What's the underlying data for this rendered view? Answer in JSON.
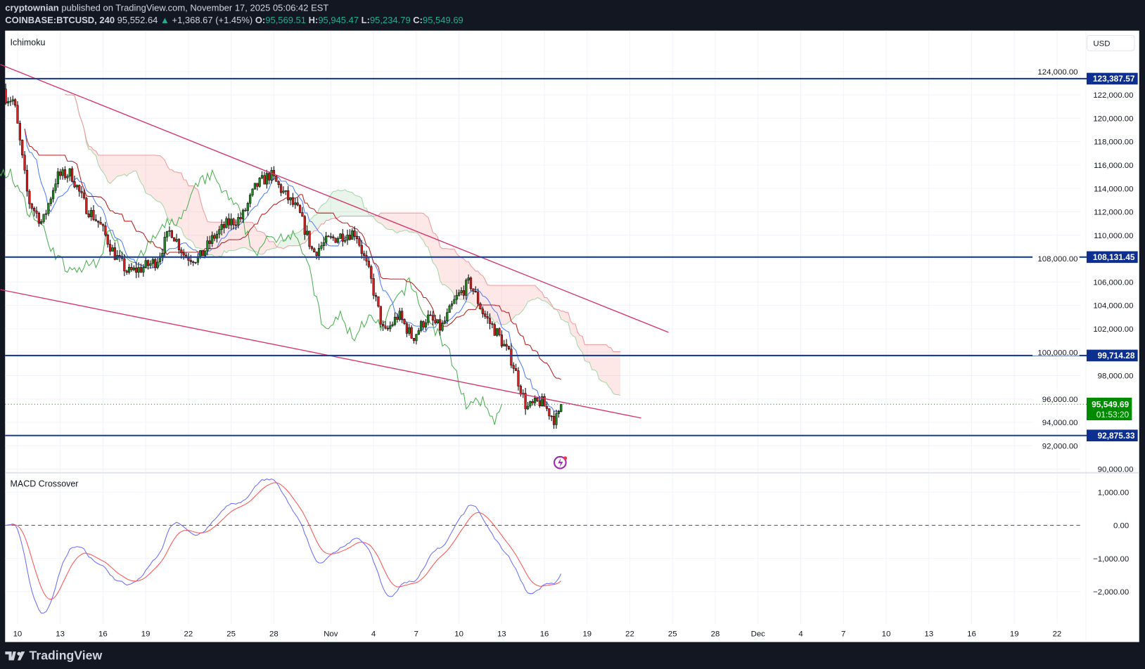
{
  "header": {
    "author": "cryptownian",
    "published": "published on TradingView.com, November 17, 2025 05:06:42 EST",
    "symbol": "COINBASE:BTCUSD, 240",
    "last": "95,552.64",
    "change": "+1,368.67 (+1.45%)",
    "o_label": "O:",
    "open": "95,569.51",
    "h_label": "H:",
    "high": "95,945.47",
    "l_label": "L:",
    "low": "95,234.79",
    "c_label": "C:",
    "close": "95,549.69"
  },
  "currency_button": "USD",
  "footer": {
    "brand": "TradingView"
  },
  "colors": {
    "up": "#1e8c1e",
    "down": "#e01b1b",
    "level": "#1c3f94",
    "trendline": "#d6336c",
    "tenkan": "#4d7cff",
    "kijun": "#b71c1c",
    "lagging": "#4caf50",
    "span_a": "#a5d6a7",
    "span_b": "#ef9a9a",
    "macd": "#6b6bff",
    "signal": "#ff5252",
    "last_price": "#008a00"
  },
  "chart_data": [
    {
      "type": "candlestick",
      "title": "Ichimoku",
      "timeframe": "4h",
      "indicators": [
        "Ichimoku Cloud (9, 26, 52, 26)"
      ],
      "ylim": [
        90000,
        124000
      ],
      "grid": true,
      "y_ticks": [
        "124,000.00",
        "122,000.00",
        "120,000.00",
        "118,000.00",
        "116,000.00",
        "114,000.00",
        "112,000.00",
        "110,000.00",
        "108,000.00",
        "106,000.00",
        "104,000.00",
        "102,000.00",
        "100,000.00",
        "98,000.00",
        "96,000.00",
        "94,000.00",
        "92,000.00",
        "90,000.00"
      ],
      "x_ticks": [
        "10",
        "13",
        "16",
        "19",
        "22",
        "25",
        "28",
        "Nov",
        "4",
        "7",
        "10",
        "13",
        "16",
        "19",
        "22",
        "25",
        "28",
        "Dec",
        "4",
        "7",
        "10",
        "13",
        "16",
        "19",
        "22"
      ],
      "daily_closes": [
        {
          "date": "2025-10-09",
          "close": 121500
        },
        {
          "date": "2025-10-10",
          "close": 113000
        },
        {
          "date": "2025-10-11",
          "close": 111000
        },
        {
          "date": "2025-10-12",
          "close": 115000
        },
        {
          "date": "2025-10-13",
          "close": 115300
        },
        {
          "date": "2025-10-14",
          "close": 112500
        },
        {
          "date": "2025-10-15",
          "close": 111000
        },
        {
          "date": "2025-10-16",
          "close": 108500
        },
        {
          "date": "2025-10-17",
          "close": 106800
        },
        {
          "date": "2025-10-18",
          "close": 107200
        },
        {
          "date": "2025-10-19",
          "close": 107800
        },
        {
          "date": "2025-10-20",
          "close": 110500
        },
        {
          "date": "2025-10-21",
          "close": 108200
        },
        {
          "date": "2025-10-22",
          "close": 108000
        },
        {
          "date": "2025-10-23",
          "close": 109800
        },
        {
          "date": "2025-10-24",
          "close": 111000
        },
        {
          "date": "2025-10-25",
          "close": 111500
        },
        {
          "date": "2025-10-26",
          "close": 114200
        },
        {
          "date": "2025-10-27",
          "close": 115200
        },
        {
          "date": "2025-10-28",
          "close": 113500
        },
        {
          "date": "2025-10-29",
          "close": 112000
        },
        {
          "date": "2025-10-30",
          "close": 108500
        },
        {
          "date": "2025-10-31",
          "close": 109500
        },
        {
          "date": "2025-11-01",
          "close": 110000
        },
        {
          "date": "2025-11-02",
          "close": 110300
        },
        {
          "date": "2025-11-03",
          "close": 106500
        },
        {
          "date": "2025-11-04",
          "close": 101500
        },
        {
          "date": "2025-11-05",
          "close": 103200
        },
        {
          "date": "2025-11-06",
          "close": 101200
        },
        {
          "date": "2025-11-07",
          "close": 103000
        },
        {
          "date": "2025-11-08",
          "close": 102000
        },
        {
          "date": "2025-11-09",
          "close": 104500
        },
        {
          "date": "2025-11-10",
          "close": 106000
        },
        {
          "date": "2025-11-11",
          "close": 103200
        },
        {
          "date": "2025-11-12",
          "close": 101500
        },
        {
          "date": "2025-11-13",
          "close": 99200
        },
        {
          "date": "2025-11-14",
          "close": 95200
        },
        {
          "date": "2025-11-15",
          "close": 95800
        },
        {
          "date": "2025-11-16",
          "close": 94200
        },
        {
          "date": "2025-11-17",
          "close": 95550
        }
      ],
      "horizontal_levels": [
        {
          "price": 123387.57,
          "label": "123,387.57"
        },
        {
          "price": 108131.45,
          "label": "108,131.45"
        },
        {
          "price": 99714.28,
          "label": "99,714.28"
        },
        {
          "price": 92875.33,
          "label": "92,875.33"
        }
      ],
      "last_price": {
        "price": 95549.69,
        "label": "95,549.69",
        "countdown": "01:53:20"
      },
      "trendlines": [
        {
          "from": {
            "date": "2025-10-08T19:00",
            "price": 124600
          },
          "to": {
            "date": "2025-11-24T17:00",
            "price": 101700
          }
        },
        {
          "from": {
            "date": "2025-10-08T19:00",
            "price": 105350
          },
          "to": {
            "date": "2025-11-22T19:00",
            "price": 94370
          }
        }
      ]
    },
    {
      "type": "line",
      "title": "MACD Crossover",
      "series": [
        {
          "role": "macd"
        },
        {
          "role": "signal"
        }
      ],
      "ylim": [
        -2500,
        1300
      ],
      "zero_line": "dashed",
      "y_ticks": [
        "1,000.00",
        "0.00",
        "−1,000.00",
        "−2,000.00"
      ],
      "tick_values": [
        1000,
        0,
        -1000,
        -2000
      ]
    }
  ]
}
